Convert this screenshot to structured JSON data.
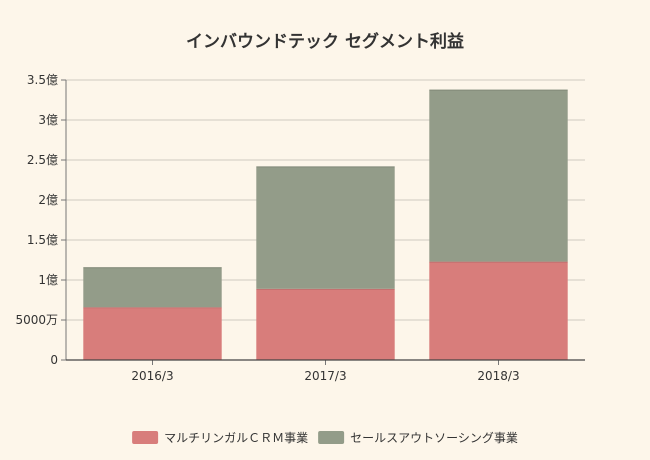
{
  "chart_data": {
    "type": "bar",
    "stacked": true,
    "title": "インバウンドテック セグメント利益",
    "categories": [
      "2016/3",
      "2017/3",
      "2018/3"
    ],
    "series": [
      {
        "name": "マルチリンガルＣＲＭ事業",
        "values": [
          0.66,
          0.89,
          1.23
        ],
        "color": "#d87d7b"
      },
      {
        "name": "セールスアウトソーシング事業",
        "values": [
          0.5,
          1.53,
          2.15
        ],
        "color": "#939c89"
      }
    ],
    "unit": "億円",
    "ylim": [
      0,
      3.5
    ],
    "y_ticks": [
      {
        "value": 0,
        "label": "0"
      },
      {
        "value": 0.5,
        "label": "5000万"
      },
      {
        "value": 1,
        "label": "1億"
      },
      {
        "value": 1.5,
        "label": "1.5億"
      },
      {
        "value": 2,
        "label": "2億"
      },
      {
        "value": 2.5,
        "label": "2.5億"
      },
      {
        "value": 3,
        "label": "3億"
      },
      {
        "value": 3.5,
        "label": "3.5億"
      }
    ],
    "grid": true,
    "legend_position": "bottom"
  }
}
